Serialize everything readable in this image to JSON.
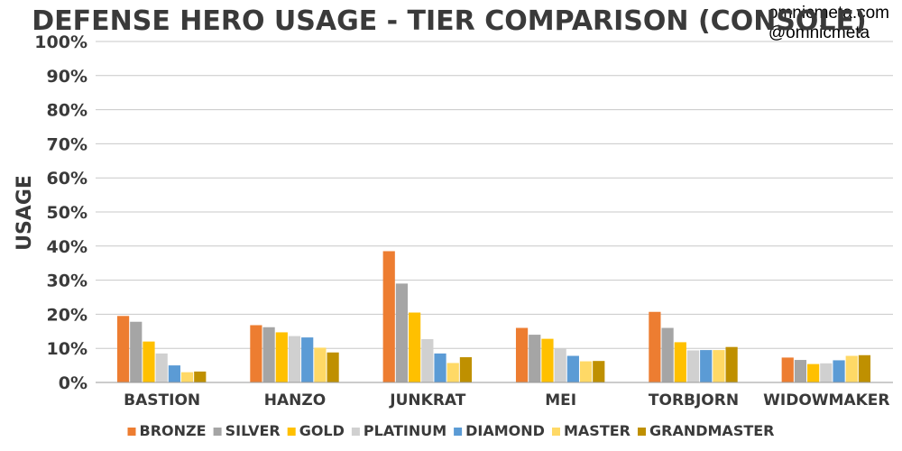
{
  "credit": {
    "site": "omnicmeta.com",
    "handle": "@omnicmeta"
  },
  "chart_data": {
    "type": "bar",
    "title": "DEFENSE HERO USAGE - TIER COMPARISON (CONSOLE)",
    "xlabel": "",
    "ylabel": "USAGE",
    "ylim": [
      0,
      100
    ],
    "yticks": [
      "0%",
      "10%",
      "20%",
      "30%",
      "40%",
      "50%",
      "60%",
      "70%",
      "80%",
      "90%",
      "100%"
    ],
    "grid": true,
    "legend_position": "bottom",
    "categories": [
      "BASTION",
      "HANZO",
      "JUNKRAT",
      "MEI",
      "TORBJORN",
      "WIDOWMAKER"
    ],
    "series": [
      {
        "name": "BRONZE",
        "color": "#ed7d31",
        "values": [
          19.5,
          16.8,
          38.5,
          16.0,
          20.7,
          7.3
        ]
      },
      {
        "name": "SILVER",
        "color": "#a5a5a5",
        "values": [
          17.8,
          16.2,
          29.0,
          14.0,
          16.0,
          6.6
        ]
      },
      {
        "name": "GOLD",
        "color": "#ffc000",
        "values": [
          12.0,
          14.7,
          20.5,
          12.8,
          11.8,
          5.4
        ]
      },
      {
        "name": "PLATINUM",
        "color": "#d0d0d0",
        "values": [
          8.5,
          13.6,
          12.7,
          10.0,
          9.4,
          5.6
        ]
      },
      {
        "name": "DIAMOND",
        "color": "#5b9bd5",
        "values": [
          5.0,
          13.2,
          8.5,
          7.8,
          9.5,
          6.5
        ]
      },
      {
        "name": "MASTER",
        "color": "#ffd966",
        "values": [
          3.0,
          10.2,
          5.7,
          6.2,
          9.5,
          7.8
        ]
      },
      {
        "name": "GRANDMASTER",
        "color": "#bf9000",
        "values": [
          3.2,
          8.8,
          7.4,
          6.3,
          10.4,
          8.0
        ]
      }
    ]
  }
}
